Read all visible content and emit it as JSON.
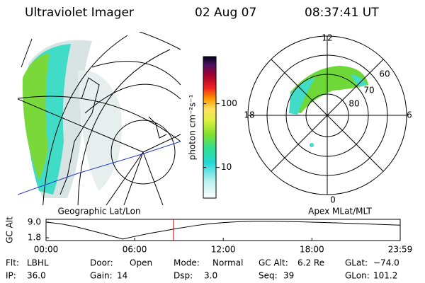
{
  "header": {
    "title": "Ultraviolet Imager",
    "date": "02 Aug 07",
    "time": "08:37:41 UT"
  },
  "left_panel": {
    "label": "Geographic Lat/Lon"
  },
  "right_panel": {
    "label": "Apex MLat/MLT",
    "mlt_labels": [
      "12",
      "18",
      "6",
      "0"
    ],
    "mlat_labels": [
      "60",
      "70",
      "80"
    ]
  },
  "colorbar": {
    "label": "photon cm⁻²s⁻¹",
    "lim": [
      3.3,
      550
    ],
    "ticks": [
      10,
      100
    ],
    "log": true
  },
  "timeline": {
    "label": "GC Alt",
    "yticks": [
      {
        "value": 9.0,
        "label": "9.0"
      },
      {
        "value": 1.8,
        "label": "1.8"
      }
    ],
    "ylim": [
      0.5,
      10.3
    ],
    "xticks": [
      {
        "value": 0,
        "label": "00:00"
      },
      {
        "value": 6,
        "label": "06:00"
      },
      {
        "value": 12,
        "label": "12:00"
      },
      {
        "value": 18,
        "label": "18:00"
      },
      {
        "value": 23.98,
        "label": "23:59"
      }
    ],
    "xlim": [
      0,
      23.98
    ],
    "hours": [
      0,
      1,
      2,
      3,
      4,
      5.2,
      6,
      7,
      8,
      9,
      10,
      11,
      12,
      13,
      14,
      15,
      16,
      17,
      18,
      20,
      22,
      23.98
    ],
    "altitude": [
      9.0,
      8.2,
      6.9,
      5.2,
      3.4,
      1.2,
      2.4,
      3.8,
      5.0,
      6.2,
      7.3,
      8.2,
      8.8,
      9.2,
      9.4,
      9.4,
      9.3,
      9.2,
      9.0,
      8.6,
      8.1,
      7.6
    ],
    "marker_hour": 8.63,
    "marker_color": "#cc0000"
  },
  "footer": {
    "rows": [
      [
        [
          "Flt:",
          "LBHL"
        ],
        [
          "Door:",
          "Open"
        ],
        [
          "Mode:",
          "Normal"
        ],
        [
          "GC Alt:",
          "6.2 Re"
        ],
        [
          "GLat:",
          "−74.0"
        ]
      ],
      [
        [
          "IP:",
          "36.0"
        ],
        [
          "Gain:",
          "14"
        ],
        [
          "Dsp:",
          "3.0"
        ],
        [
          "Seq:",
          "39"
        ],
        [
          "GLon:",
          "101.2"
        ]
      ]
    ]
  }
}
